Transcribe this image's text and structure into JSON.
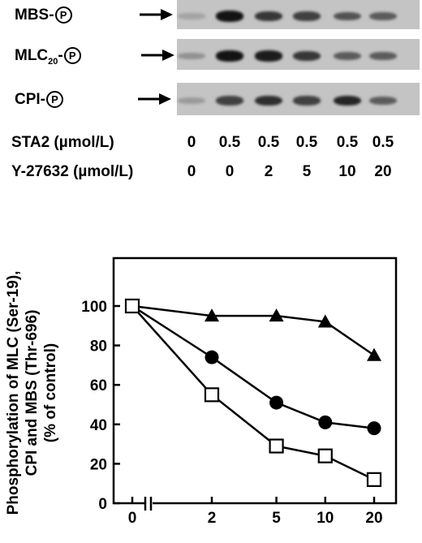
{
  "blots": [
    {
      "label": "MBS-",
      "mark": "P",
      "intensities": [
        0.15,
        0.95,
        0.75,
        0.7,
        0.6,
        0.55
      ]
    },
    {
      "label": "MLC",
      "sub": "20",
      "label_end": "-",
      "mark": "P",
      "intensities": [
        0.25,
        0.95,
        0.9,
        0.75,
        0.55,
        0.55
      ]
    },
    {
      "label": "CPI-",
      "mark": "P",
      "intensities": [
        0.2,
        0.7,
        0.8,
        0.7,
        0.85,
        0.55
      ]
    }
  ],
  "conditions": {
    "sta2": {
      "label": "STA2 (µmol/L)",
      "values": [
        "0",
        "0.5",
        "0.5",
        "0.5",
        "0.5",
        "0.5"
      ]
    },
    "y27632": {
      "label": "Y-27632 (µmol/L)",
      "values": [
        "0",
        "0",
        "2",
        "5",
        "10",
        "20"
      ]
    }
  },
  "chart_data": {
    "type": "line",
    "ylabel": "Phosphorylation of MLC (Ser-19), CPI and MBS (Thr-696) (% of control)",
    "xlabel": "",
    "ylim": [
      0,
      100
    ],
    "yticks": [
      "0",
      "20",
      "40",
      "60",
      "80",
      "100"
    ],
    "xticks": [
      "0",
      "2",
      "5",
      "10",
      "20"
    ],
    "x_scale": "log with axis break after 0",
    "series": [
      {
        "marker": "triangle-filled",
        "x": [
          0,
          2,
          5,
          10,
          20
        ],
        "y": [
          100,
          95,
          95,
          92,
          75
        ]
      },
      {
        "marker": "circle-filled",
        "x": [
          0,
          2,
          5,
          10,
          20
        ],
        "y": [
          100,
          74,
          51,
          41,
          38
        ]
      },
      {
        "marker": "square-open",
        "x": [
          0,
          2,
          5,
          10,
          20
        ],
        "y": [
          100,
          55,
          29,
          24,
          12
        ]
      }
    ]
  }
}
